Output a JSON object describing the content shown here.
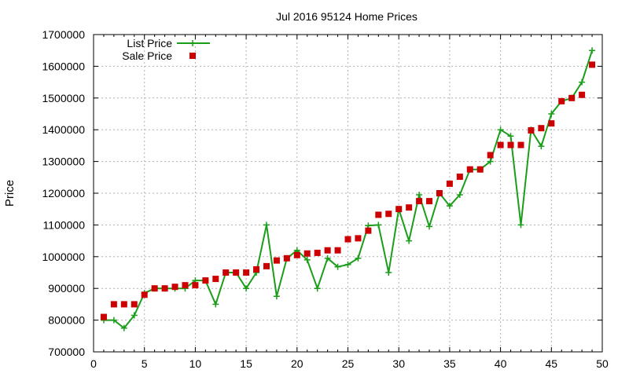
{
  "chart_data": {
    "type": "line",
    "title": "Jul 2016 95124 Home Prices",
    "xlabel": "",
    "ylabel": "Price",
    "xlim": [
      0,
      50
    ],
    "ylim": [
      700000,
      1700000
    ],
    "grid": true,
    "legend_position": "top-left",
    "x_ticks": [
      "0",
      "5",
      "10",
      "15",
      "20",
      "25",
      "30",
      "35",
      "40",
      "45",
      "50"
    ],
    "y_ticks": [
      "700000",
      "800000",
      "900000",
      "1000000",
      "1100000",
      "1200000",
      "1300000",
      "1400000",
      "1500000",
      "1600000",
      "1700000"
    ],
    "series": [
      {
        "name": "List Price",
        "style": "line-plus",
        "color": "#1a9e1a",
        "x": [
          1,
          2,
          3,
          4,
          5,
          6,
          7,
          8,
          9,
          10,
          11,
          12,
          13,
          14,
          15,
          16,
          17,
          18,
          19,
          20,
          21,
          22,
          23,
          24,
          25,
          26,
          27,
          28,
          29,
          30,
          31,
          32,
          33,
          34,
          35,
          36,
          37,
          38,
          39,
          40,
          41,
          42,
          43,
          44,
          45,
          46,
          47,
          48,
          49
        ],
        "values": [
          800000,
          800000,
          775000,
          815000,
          885000,
          900000,
          900000,
          900000,
          900000,
          925000,
          925000,
          850000,
          950000,
          950000,
          900000,
          950000,
          1100000,
          875000,
          995000,
          1020000,
          990000,
          900000,
          995000,
          968000,
          975000,
          995000,
          1098000,
          1100000,
          950000,
          1150000,
          1050000,
          1195000,
          1095000,
          1200000,
          1160000,
          1195000,
          1275000,
          1275000,
          1300000,
          1400000,
          1380000,
          1100000,
          1400000,
          1348000,
          1450000,
          1490000,
          1500000,
          1550000,
          1650000
        ]
      },
      {
        "name": "Sale Price",
        "style": "square",
        "color": "#cc0000",
        "x": [
          1,
          2,
          3,
          4,
          5,
          6,
          7,
          8,
          9,
          10,
          11,
          12,
          13,
          14,
          15,
          16,
          17,
          18,
          19,
          20,
          21,
          22,
          23,
          24,
          25,
          26,
          27,
          28,
          29,
          30,
          31,
          32,
          33,
          34,
          35,
          36,
          37,
          38,
          39,
          40,
          41,
          42,
          43,
          44,
          45,
          46,
          47,
          48,
          49
        ],
        "values": [
          810000,
          850000,
          850000,
          850000,
          880000,
          900000,
          900000,
          905000,
          910000,
          910000,
          925000,
          930000,
          950000,
          950000,
          950000,
          960000,
          970000,
          988000,
          995000,
          1005000,
          1010000,
          1012000,
          1020000,
          1020000,
          1055000,
          1058000,
          1082000,
          1132000,
          1135000,
          1150000,
          1155000,
          1175000,
          1175000,
          1200000,
          1230000,
          1252000,
          1275000,
          1275000,
          1320000,
          1352000,
          1352000,
          1352000,
          1398000,
          1405000,
          1420000,
          1490000,
          1500000,
          1510000,
          1605000
        ]
      }
    ]
  }
}
